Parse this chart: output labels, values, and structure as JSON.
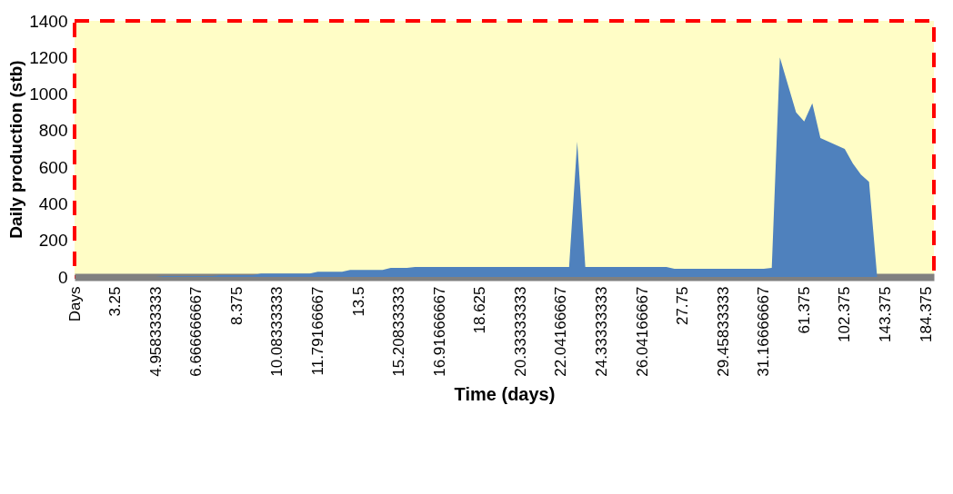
{
  "chart_data": {
    "type": "area",
    "xlabel": "Time (days)",
    "ylabel": "Daily production (stb)",
    "categories": [
      "Days",
      null,
      null,
      null,
      null,
      "3.25",
      null,
      null,
      null,
      null,
      "4.958333333",
      null,
      null,
      null,
      null,
      "6.666666667",
      null,
      null,
      null,
      null,
      "8.375",
      null,
      null,
      null,
      null,
      "10.08333333",
      null,
      null,
      null,
      null,
      "11.79166667",
      null,
      null,
      null,
      null,
      "13.5",
      null,
      null,
      null,
      null,
      "15.20833333",
      null,
      null,
      null,
      null,
      "16.91666667",
      null,
      null,
      null,
      null,
      "18.625",
      null,
      null,
      null,
      null,
      "20.33333333",
      null,
      null,
      null,
      null,
      "22.04166667",
      null,
      null,
      null,
      null,
      "24.33333333",
      null,
      null,
      null,
      null,
      "26.04166667",
      null,
      null,
      null,
      null,
      "27.75",
      null,
      null,
      null,
      null,
      "29.45833333",
      null,
      null,
      null,
      null,
      "31.16666667",
      null,
      null,
      null,
      null,
      "61.375",
      null,
      null,
      null,
      null,
      "102.375",
      null,
      null,
      null,
      null,
      "143.375",
      null,
      null,
      null,
      null,
      "184.375",
      null
    ],
    "series": [
      {
        "color": "#4f81bd",
        "values": [
          0,
          0,
          0,
          0,
          0,
          0,
          0,
          0,
          0,
          0,
          0,
          5,
          5,
          5,
          5,
          5,
          5,
          5,
          10,
          10,
          10,
          10,
          10,
          18,
          18,
          18,
          18,
          18,
          18,
          18,
          28,
          28,
          28,
          28,
          38,
          38,
          38,
          38,
          38,
          50,
          50,
          50,
          55,
          55,
          55,
          55,
          55,
          55,
          55,
          55,
          55,
          55,
          55,
          55,
          55,
          55,
          55,
          55,
          55,
          55,
          55,
          55,
          740,
          55,
          55,
          55,
          55,
          55,
          55,
          55,
          55,
          55,
          55,
          55,
          45,
          45,
          45,
          45,
          45,
          45,
          45,
          45,
          45,
          45,
          45,
          45,
          50,
          1200,
          1050,
          900,
          850,
          950,
          760,
          740,
          720,
          700,
          620,
          560,
          520,
          0,
          0,
          0,
          0,
          0,
          0,
          0,
          0
        ]
      }
    ],
    "ylim": [
      0,
      1400
    ],
    "yticks": [
      0,
      200,
      400,
      600,
      800,
      1000,
      1200,
      1400
    ],
    "grid": false,
    "legend": false
  }
}
